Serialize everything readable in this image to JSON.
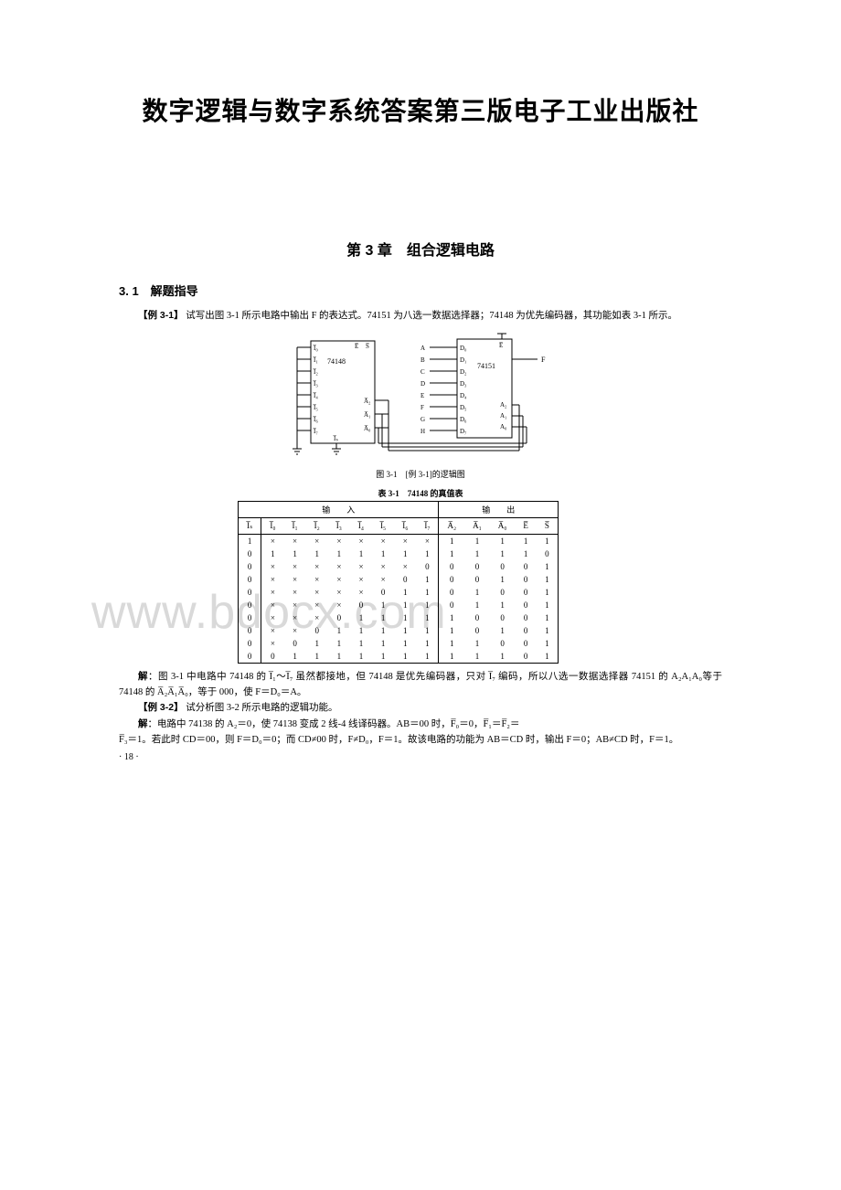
{
  "title": "数字逻辑与数字系统答案第三版电子工业出版社",
  "chapter": "第 3 章　组合逻辑电路",
  "section": "3. 1　解题指导",
  "watermark": "www.bdocx.com",
  "example1": {
    "label": "【例 3-1】",
    "text": "试写出图 3-1 所示电路中输出 F 的表达式。74151 为八选一数据选择器；74148 为优先编码器，其功能如表 3-1 所示。"
  },
  "figure1": {
    "caption": "图 3-1　[例 3-1]的逻辑图",
    "chip1": "74148",
    "chip2": "74151",
    "left_pins": [
      "I̅₀",
      "I̅₁",
      "I̅₂",
      "I̅₃",
      "I̅₄",
      "I̅₅",
      "I̅₆",
      "I̅₇"
    ],
    "left_bottom": "I̅ₛ",
    "left_top": [
      "E̅",
      "S̅"
    ],
    "left_out": [
      "A̅₂",
      "A̅₁",
      "A̅₀"
    ],
    "mid_labels": [
      "A",
      "B",
      "C",
      "D",
      "E",
      "F",
      "G",
      "H"
    ],
    "right_d": [
      "D₀",
      "D₁",
      "D₂",
      "D₃",
      "D₄",
      "D₅",
      "D₆",
      "D₇"
    ],
    "right_top": "E̅",
    "right_a": [
      "A₂",
      "A₁",
      "A₀"
    ],
    "right_out": "F"
  },
  "table1": {
    "caption": "表 3-1　74148 的真值表",
    "section_in": "输　　入",
    "section_out": "输　　出",
    "headers_in": [
      "I̅ₛ",
      "I̅₀",
      "I̅₁",
      "I̅₂",
      "I̅₃",
      "I̅₄",
      "I̅₅",
      "I̅₆",
      "I̅₇"
    ],
    "headers_out": [
      "A̅₂",
      "A̅₁",
      "A̅₀",
      "E̅",
      "S̅"
    ],
    "rows": [
      [
        "1",
        "×",
        "×",
        "×",
        "×",
        "×",
        "×",
        "×",
        "×",
        "1",
        "1",
        "1",
        "1",
        "1"
      ],
      [
        "0",
        "1",
        "1",
        "1",
        "1",
        "1",
        "1",
        "1",
        "1",
        "1",
        "1",
        "1",
        "1",
        "0"
      ],
      [
        "0",
        "×",
        "×",
        "×",
        "×",
        "×",
        "×",
        "×",
        "0",
        "0",
        "0",
        "0",
        "0",
        "1"
      ],
      [
        "0",
        "×",
        "×",
        "×",
        "×",
        "×",
        "×",
        "0",
        "1",
        "0",
        "0",
        "1",
        "0",
        "1"
      ],
      [
        "0",
        "×",
        "×",
        "×",
        "×",
        "×",
        "0",
        "1",
        "1",
        "0",
        "1",
        "0",
        "0",
        "1"
      ],
      [
        "0",
        "×",
        "×",
        "×",
        "×",
        "0",
        "1",
        "1",
        "1",
        "0",
        "1",
        "1",
        "0",
        "1"
      ],
      [
        "0",
        "×",
        "×",
        "×",
        "0",
        "1",
        "1",
        "1",
        "1",
        "1",
        "0",
        "0",
        "0",
        "1"
      ],
      [
        "0",
        "×",
        "×",
        "0",
        "1",
        "1",
        "1",
        "1",
        "1",
        "1",
        "0",
        "1",
        "0",
        "1"
      ],
      [
        "0",
        "×",
        "0",
        "1",
        "1",
        "1",
        "1",
        "1",
        "1",
        "1",
        "1",
        "0",
        "0",
        "1"
      ],
      [
        "0",
        "0",
        "1",
        "1",
        "1",
        "1",
        "1",
        "1",
        "1",
        "1",
        "1",
        "1",
        "0",
        "1"
      ]
    ]
  },
  "solution1": {
    "label": "解",
    "text": "：图 3-1 中电路中 74148 的 I̅₁～I̅₇ 虽然都接地，但 74148 是优先编码器，只对 I̅₇ 编码，所以八选一数据选择器 74151 的 A₂A₁A₀等于 74148 的 A̅₂A̅₁A̅₀，等于 000，使 F＝D₀＝A。"
  },
  "example2": {
    "label": "【例 3-2】",
    "text": "试分析图 3-2 所示电路的逻辑功能。"
  },
  "solution2": {
    "label": "解",
    "line1": "：电路中 74138 的 A₂＝0，使 74138 变成 2 线-4 线译码器。AB＝00 时，F̅₀＝0，F̅₁＝F̅₂＝",
    "line2": "F̅₃＝1。若此时 CD＝00，则 F＝D₀＝0；而 CD≠00 时，F≠D₀，F＝1。故该电路的功能为 AB＝CD 时，输出 F＝0；AB≠CD 时，F＝1。"
  },
  "page_number": "· 18 ·",
  "colors": {
    "text": "#000000",
    "background": "#ffffff",
    "watermark": "#d9d9d9",
    "line": "#000000"
  }
}
